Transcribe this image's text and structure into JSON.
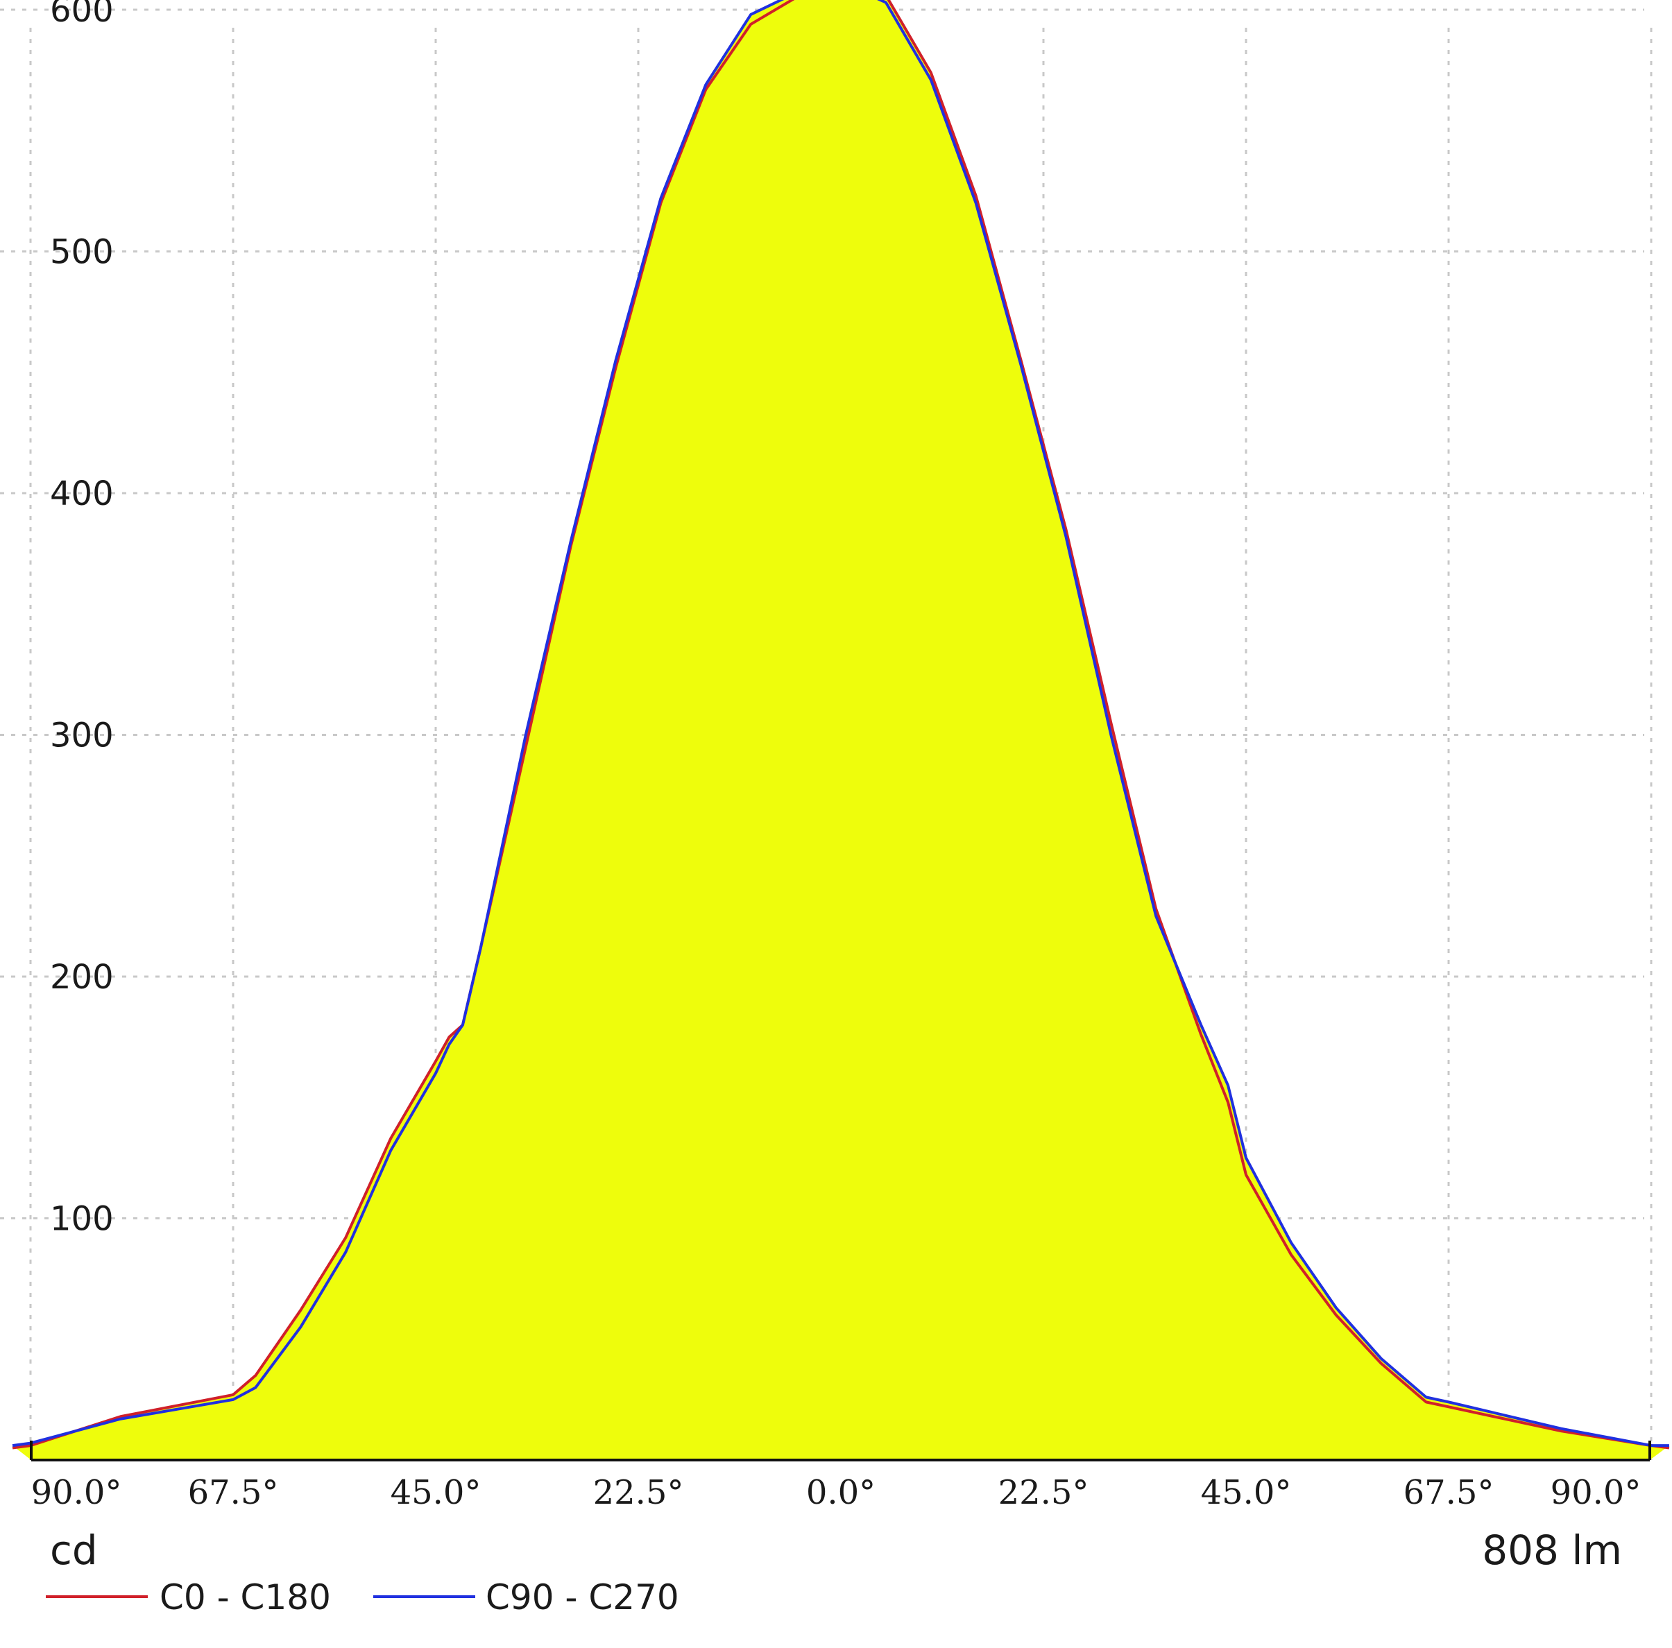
{
  "chart_data": {
    "type": "area",
    "y_unit": "cd",
    "luminous_flux": "808 lm",
    "ylim": [
      0,
      600
    ],
    "y_ticks": [
      100,
      200,
      300,
      400,
      500,
      600
    ],
    "y_tick_labels": [
      "100",
      "200",
      "300",
      "400",
      "500",
      "600"
    ],
    "x_ticks": [
      -90,
      -67.5,
      -45,
      -22.5,
      0,
      22.5,
      45,
      67.5,
      90
    ],
    "x_tick_labels": [
      "90.0°",
      "67.5°",
      "45.0°",
      "22.5°",
      "0.0°",
      "22.5°",
      "45.0°",
      "67.5°",
      "90.0°"
    ],
    "grid": true,
    "legend_position": "bottom-left",
    "fill_color": "#eefd0c",
    "series": [
      {
        "name": "C0 - C180",
        "color": "#d0202a",
        "x": [
          -92,
          -90,
          -80,
          -67.5,
          -65,
          -60,
          -55,
          -50,
          -45,
          -43.5,
          -42,
          -40,
          -35,
          -30,
          -25,
          -20,
          -15,
          -10,
          -5,
          -2,
          0,
          2,
          5,
          10,
          15,
          20,
          25,
          30,
          35,
          40,
          43,
          45,
          50,
          55,
          60,
          65,
          67.5,
          80,
          90,
          92
        ],
        "y": [
          5,
          6,
          18,
          27,
          35,
          62,
          92,
          133,
          165,
          175,
          180,
          212,
          295,
          378,
          452,
          520,
          567,
          594,
          605,
          608,
          609,
          610,
          606,
          574,
          523,
          455,
          385,
          305,
          228,
          176,
          148,
          118,
          85,
          60,
          40,
          24,
          22,
          12,
          6,
          5
        ]
      },
      {
        "name": "C90 - C270",
        "color": "#2030e0",
        "x": [
          -92,
          -90,
          -80,
          -67.5,
          -65,
          -60,
          -55,
          -50,
          -45,
          -43.5,
          -42,
          -40,
          -35,
          -30,
          -25,
          -20,
          -15,
          -10,
          -5,
          -2,
          0,
          2,
          5,
          10,
          15,
          20,
          25,
          30,
          35,
          40,
          43,
          45,
          50,
          55,
          60,
          65,
          67.5,
          80,
          90,
          92
        ],
        "y": [
          6,
          7,
          17,
          25,
          30,
          55,
          86,
          128,
          160,
          172,
          180,
          212,
          300,
          380,
          455,
          522,
          569,
          598,
          607,
          609,
          610,
          608,
          603,
          571,
          520,
          453,
          382,
          300,
          225,
          180,
          155,
          125,
          90,
          63,
          42,
          26,
          24,
          13,
          6,
          6
        ]
      }
    ]
  }
}
